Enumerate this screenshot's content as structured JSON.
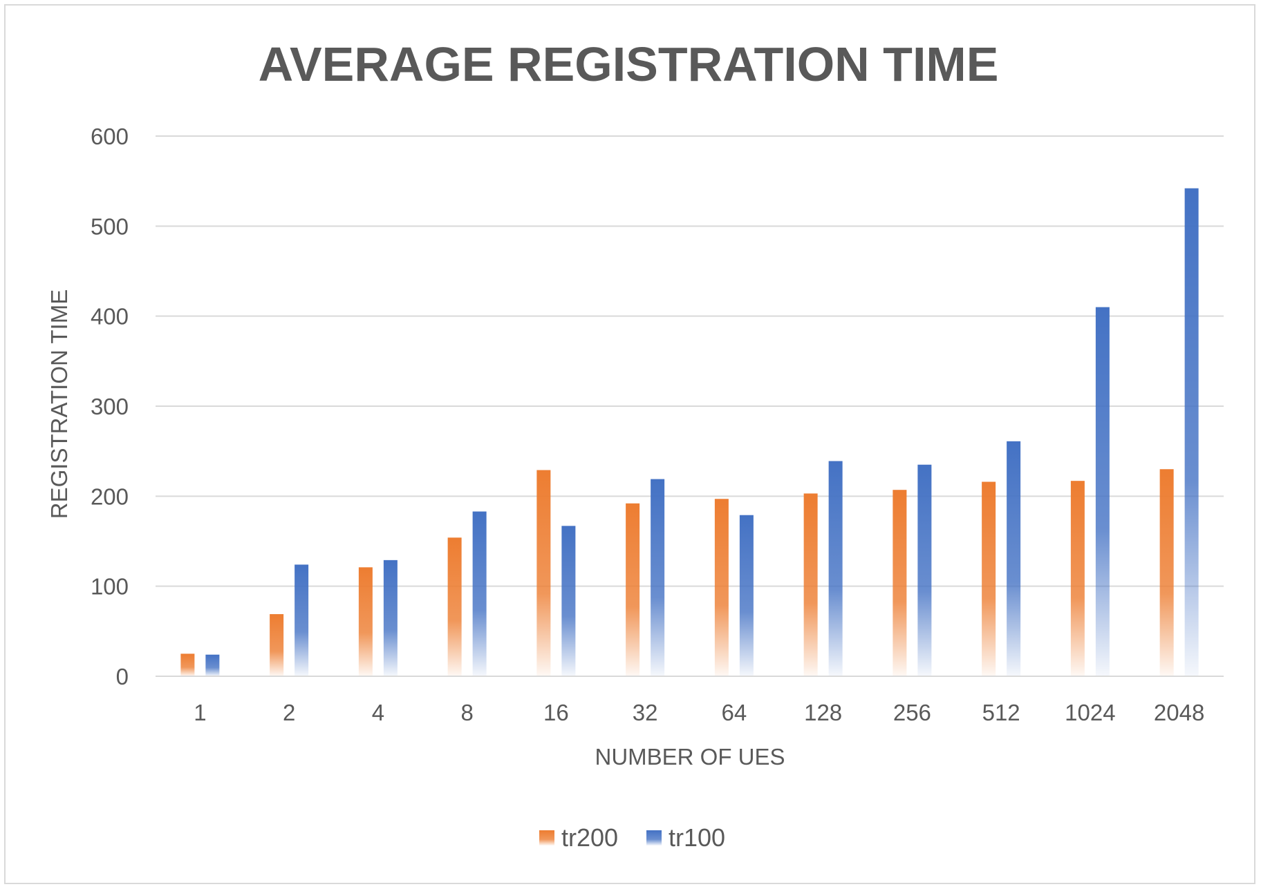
{
  "chart_data": {
    "type": "bar",
    "title": "AVERAGE REGISTRATION TIME",
    "xlabel": "NUMBER OF UES",
    "ylabel": "REGISTRATION TIME",
    "categories": [
      "1",
      "2",
      "4",
      "8",
      "16",
      "32",
      "64",
      "128",
      "256",
      "512",
      "1024",
      "2048"
    ],
    "series": [
      {
        "name": "tr200",
        "color": "#ed7d31",
        "values": [
          25,
          69,
          121,
          154,
          229,
          192,
          197,
          203,
          207,
          216,
          217,
          230
        ]
      },
      {
        "name": "tr100",
        "color": "#4472c4",
        "values": [
          24,
          124,
          129,
          183,
          167,
          219,
          179,
          239,
          235,
          261,
          410,
          542
        ]
      }
    ],
    "ylim": [
      0,
      600
    ],
    "yticks": [
      "0",
      "100",
      "200",
      "300",
      "400",
      "500",
      "600"
    ],
    "grid": true,
    "legend_position": "bottom",
    "gradient_fill": true
  }
}
